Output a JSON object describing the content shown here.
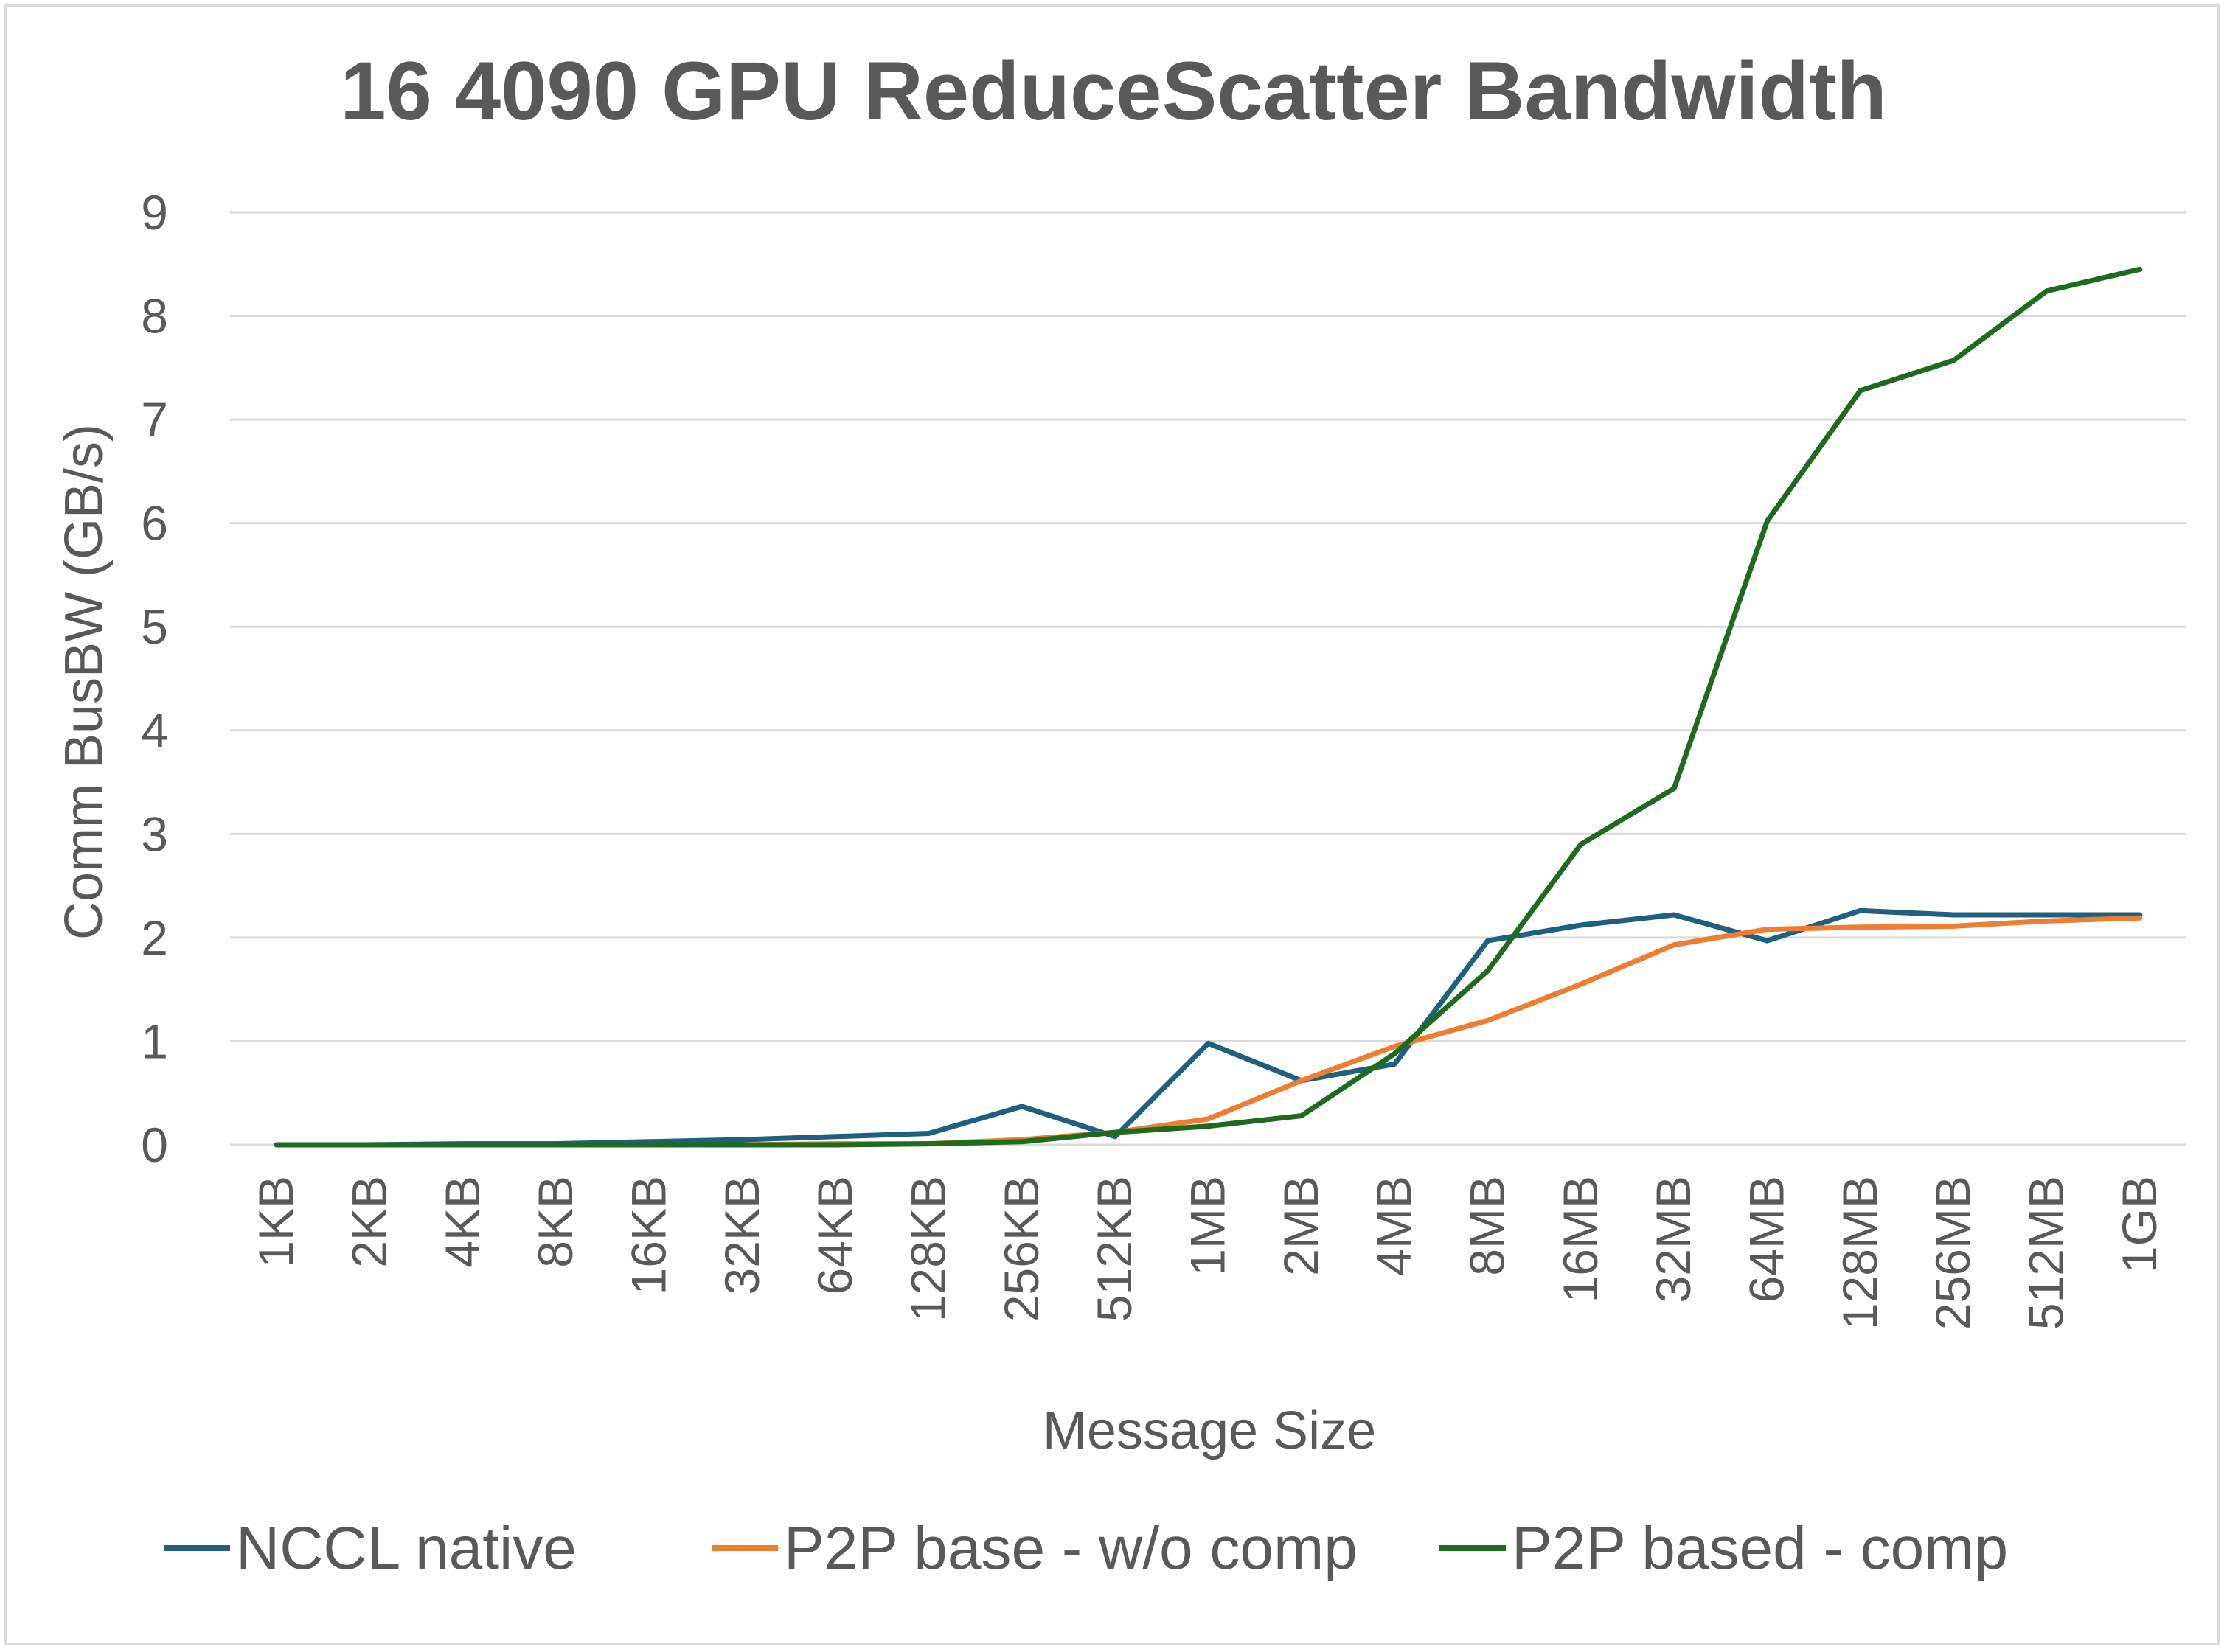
{
  "chart_data": {
    "type": "line",
    "title": "16 4090 GPU ReduceScatter Bandwidth",
    "xlabel": "Message Size",
    "ylabel": "Comm BusBW (GB/s)",
    "ylim": [
      0,
      9
    ],
    "yticks": [
      "0",
      "1",
      "2",
      "3",
      "4",
      "5",
      "6",
      "7",
      "8",
      "9"
    ],
    "grid": true,
    "legend_position": "bottom",
    "categories": [
      "1KB",
      "2KB",
      "4KB",
      "8KB",
      "16KB",
      "32KB",
      "64KB",
      "128KB",
      "256KB",
      "512KB",
      "1MB",
      "2MB",
      "4MB",
      "8MB",
      "16MB",
      "32MB",
      "64MB",
      "128MB",
      "256MB",
      "512MB",
      "1GB"
    ],
    "series": [
      {
        "name": "NCCL native",
        "color": "#1f5f7f",
        "values": [
          0.0,
          0.0,
          0.01,
          0.01,
          0.03,
          0.05,
          0.08,
          0.11,
          0.37,
          0.08,
          0.98,
          0.62,
          0.78,
          1.97,
          2.12,
          2.22,
          1.97,
          2.26,
          2.22,
          2.22,
          2.22
        ]
      },
      {
        "name": "P2P base - w/o comp",
        "color": "#ed7d31",
        "values": [
          0.0,
          0.0,
          0.0,
          0.0,
          0.0,
          0.0,
          0.01,
          0.01,
          0.05,
          0.12,
          0.25,
          0.62,
          0.95,
          1.2,
          1.55,
          1.93,
          2.08,
          2.1,
          2.11,
          2.16,
          2.19
        ]
      },
      {
        "name": "P2P based - comp",
        "color": "#1e6b1e",
        "values": [
          0.0,
          0.0,
          0.0,
          0.0,
          0.0,
          0.0,
          0.0,
          0.01,
          0.03,
          0.12,
          0.18,
          0.28,
          0.88,
          1.68,
          2.9,
          3.44,
          6.02,
          7.28,
          7.57,
          8.24,
          8.45
        ]
      }
    ]
  }
}
